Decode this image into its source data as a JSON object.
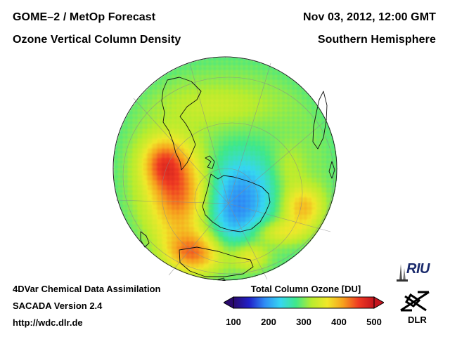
{
  "header": {
    "title_line1": "GOME–2 / MetOp Forecast",
    "title_line2": "Ozone Vertical Column Density",
    "date": "Nov 03, 2012, 12:00 GMT",
    "region": "Southern Hemisphere"
  },
  "footer": {
    "line1": "4DVar Chemical Data Assimilation",
    "line2": "SACADA Version 2.4",
    "line3": "http://wdc.dlr.de"
  },
  "colorbar": {
    "title": "Total Column Ozone [DU]",
    "ticks": [
      "100",
      "200",
      "300",
      "400",
      "500"
    ],
    "min": 100,
    "max": 500,
    "colors": [
      "#2a0a6e",
      "#2020c8",
      "#2f8cf5",
      "#36d6f2",
      "#3fe88a",
      "#b8ec2e",
      "#f0e82a",
      "#f7a21e",
      "#ef3a22",
      "#c4141e"
    ]
  },
  "logos": {
    "riu_text": "RIU",
    "dlr_text": "DLR"
  },
  "map": {
    "projection": "orthographic-south-pole",
    "ozone_hole_min_du": 190,
    "background_du": 300,
    "max_du": 440
  }
}
